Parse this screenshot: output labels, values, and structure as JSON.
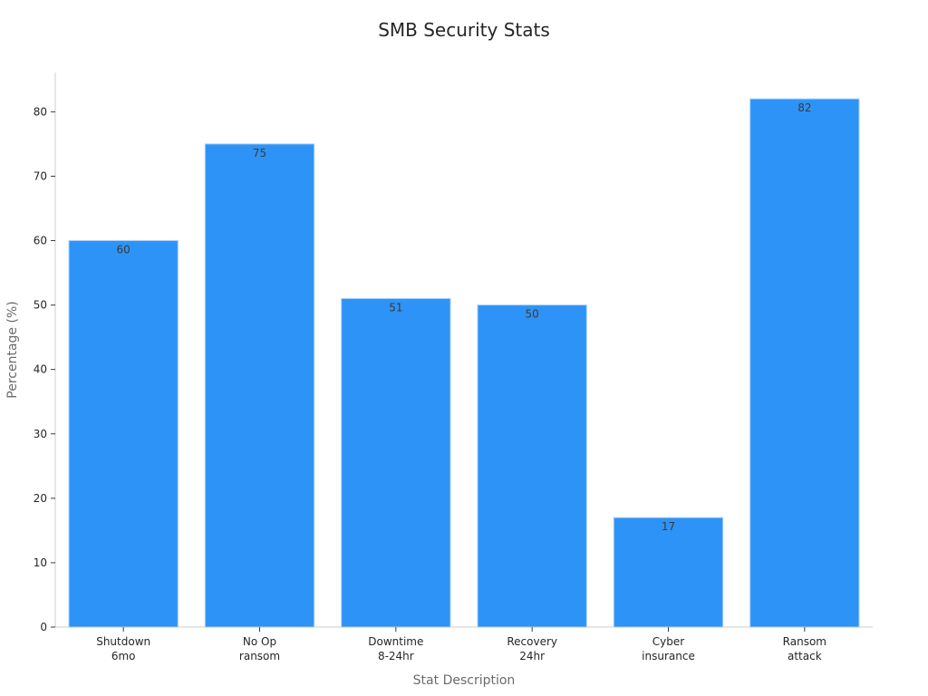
{
  "chart_data": {
    "type": "bar",
    "title": "SMB Security Stats",
    "xlabel": "Stat Description",
    "ylabel": "Percentage (%)",
    "categories": [
      [
        "Shutdown",
        "6mo"
      ],
      [
        "No Op",
        "ransom"
      ],
      [
        "Downtime",
        "8-24hr"
      ],
      [
        "Recovery",
        "24hr"
      ],
      [
        "Cyber",
        "insurance"
      ],
      [
        "Ransom",
        "attack"
      ]
    ],
    "values": [
      60,
      75,
      51,
      50,
      17,
      82
    ],
    "ylim": [
      0,
      86.1
    ],
    "yticks": [
      0,
      10,
      20,
      30,
      40,
      50,
      60,
      70,
      80
    ],
    "bar_color": "#2e93f7",
    "grid": false
  }
}
